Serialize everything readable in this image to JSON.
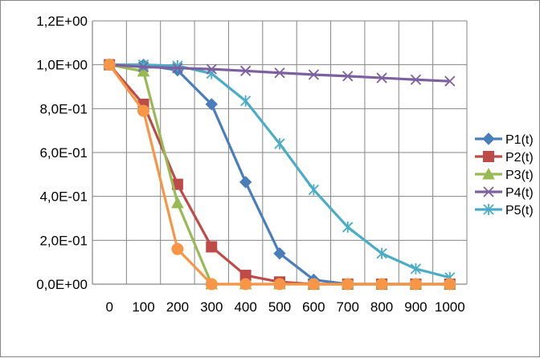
{
  "chart_data": {
    "type": "line",
    "title": "",
    "xlabel": "",
    "ylabel": "",
    "x": [
      0,
      100,
      200,
      300,
      400,
      500,
      600,
      700,
      800,
      900,
      1000
    ],
    "x_tick_labels": [
      "0",
      "100",
      "200",
      "300",
      "400",
      "500",
      "600",
      "700",
      "800",
      "900",
      "1000"
    ],
    "ylim": [
      0,
      1.2
    ],
    "y_ticks": [
      0,
      0.2,
      0.4,
      0.6,
      0.8,
      1.0,
      1.2
    ],
    "y_tick_labels": [
      "0,0E+00",
      "2,0E-01",
      "4,0E-01",
      "6,0E-01",
      "8,0E-01",
      "1,0E+00",
      "1,2E+00"
    ],
    "grid": true,
    "legend_position": "right",
    "series": [
      {
        "name": "P1(t)",
        "color": "#4A7EBB",
        "marker": "diamond",
        "values": [
          1.0,
          1.0,
          0.975,
          0.82,
          0.465,
          0.14,
          0.02,
          0.0,
          0.0,
          0.0,
          0.0
        ]
      },
      {
        "name": "P2(t)",
        "color": "#BE4B48",
        "marker": "square",
        "values": [
          1.0,
          0.82,
          0.455,
          0.17,
          0.04,
          0.01,
          0.0,
          0.0,
          0.0,
          0.0,
          0.0
        ]
      },
      {
        "name": "P3(t)",
        "color": "#98B954",
        "marker": "triangle",
        "values": [
          1.0,
          0.97,
          0.37,
          0.0,
          0.0,
          0.0,
          0.0,
          0.0,
          0.0,
          0.0,
          0.0
        ]
      },
      {
        "name": "P4(t)",
        "color": "#7D60A0",
        "marker": "x",
        "values": [
          1.0,
          0.99,
          0.985,
          0.98,
          0.972,
          0.963,
          0.955,
          0.948,
          0.94,
          0.932,
          0.925
        ]
      },
      {
        "name": "P5(t)",
        "color": "#4BACC6",
        "marker": "star",
        "values": [
          1.0,
          1.0,
          0.995,
          0.96,
          0.835,
          0.64,
          0.43,
          0.26,
          0.14,
          0.07,
          0.03
        ]
      },
      {
        "name": "",
        "color": "#F79646",
        "marker": "circle",
        "in_legend": false,
        "values": [
          1.0,
          0.79,
          0.16,
          0.0,
          0.0,
          0.0,
          0.0,
          0.0,
          0.0,
          0.0,
          0.0
        ]
      }
    ]
  }
}
